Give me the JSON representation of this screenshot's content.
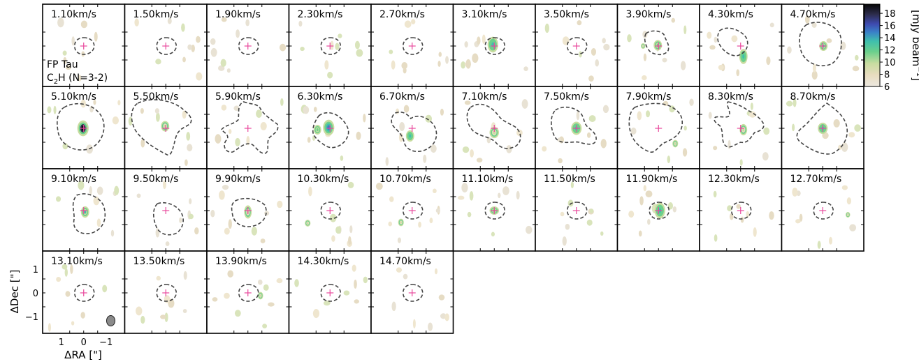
{
  "chart_data": {
    "type": "heatmap",
    "title": "",
    "source_label": "FP Tau",
    "line_label_main": "C",
    "line_label_sub": "2",
    "line_label_tail": "H (N=3-2)",
    "xlabel": "ΔRA [\"]",
    "ylabel": "ΔDec [\"]",
    "x_ticks": [
      "1",
      "0",
      "−1"
    ],
    "y_ticks": [
      "1",
      "0",
      "−1"
    ],
    "colorbar": {
      "label": "[mJy beam",
      "label_sup": "−1",
      "label_end": "]",
      "ticks": [
        "18",
        "16",
        "14",
        "12",
        "10",
        "8",
        "6"
      ],
      "range": [
        6,
        19.5
      ],
      "colors": [
        "#ece8e0",
        "#e8dcbf",
        "#c8dca0",
        "#6cd08c",
        "#3fbfad",
        "#3a80c8",
        "#3e4ab0",
        "#2c2c4a",
        "#080808"
      ]
    },
    "channels": [
      {
        "label": "1.10km/s",
        "mask": "circle",
        "blobs": []
      },
      {
        "label": "1.50km/s",
        "mask": "circle",
        "blobs": []
      },
      {
        "label": "1.90km/s",
        "mask": "circle",
        "blobs": []
      },
      {
        "label": "2.30km/s",
        "mask": "circle",
        "blobs": []
      },
      {
        "label": "2.70km/s",
        "mask": "circle",
        "blobs": []
      },
      {
        "label": "3.10km/s",
        "mask": "circle",
        "blobs": [
          {
            "x": 0.1,
            "y": 0.1,
            "rx": 0.28,
            "ry": 0.42,
            "peak": 13
          }
        ]
      },
      {
        "label": "3.50km/s",
        "mask": "circle",
        "blobs": []
      },
      {
        "label": "3.90km/s",
        "mask": "ellipse_ne",
        "blobs": [
          {
            "x": 0.05,
            "y": 0.05,
            "rx": 0.22,
            "ry": 0.28,
            "peak": 11
          },
          {
            "x": 1.1,
            "y": 0.0,
            "rx": 0.12,
            "ry": 0.15,
            "peak": 9
          }
        ]
      },
      {
        "label": "4.30km/s",
        "mask": "tilted",
        "blobs": [
          {
            "x": -0.2,
            "y": -0.75,
            "rx": 0.22,
            "ry": 0.4,
            "peak": 13
          }
        ]
      },
      {
        "label": "4.70km/s",
        "mask": "blob_big",
        "blobs": [
          {
            "x": -0.05,
            "y": 0.0,
            "rx": 0.22,
            "ry": 0.26,
            "peak": 12
          }
        ]
      },
      {
        "label": "5.10km/s",
        "mask": "big_round",
        "blobs": [
          {
            "x": 0.05,
            "y": 0.0,
            "rx": 0.3,
            "ry": 0.42,
            "peak": 19
          }
        ]
      },
      {
        "label": "5.50km/s",
        "mask": "irregular_a",
        "blobs": [
          {
            "x": 0.05,
            "y": 0.15,
            "rx": 0.22,
            "ry": 0.28,
            "peak": 10
          }
        ]
      },
      {
        "label": "5.90km/s",
        "mask": "star",
        "blobs": []
      },
      {
        "label": "6.30km/s",
        "mask": "irregular_b",
        "blobs": [
          {
            "x": 0.1,
            "y": 0.05,
            "rx": 0.3,
            "ry": 0.42,
            "peak": 14
          },
          {
            "x": 0.9,
            "y": -0.1,
            "rx": 0.2,
            "ry": 0.26,
            "peak": 11
          }
        ]
      },
      {
        "label": "6.70km/s",
        "mask": "peanut",
        "blobs": [
          {
            "x": 0.15,
            "y": -0.55,
            "rx": 0.22,
            "ry": 0.3,
            "peak": 13
          }
        ]
      },
      {
        "label": "7.10km/s",
        "mask": "peanut_wide",
        "blobs": [
          {
            "x": 0.0,
            "y": -0.3,
            "rx": 0.25,
            "ry": 0.3,
            "peak": 9
          }
        ]
      },
      {
        "label": "7.50km/s",
        "mask": "irregular_c",
        "blobs": [
          {
            "x": 0.0,
            "y": 0.0,
            "rx": 0.28,
            "ry": 0.35,
            "peak": 13
          }
        ]
      },
      {
        "label": "7.90km/s",
        "mask": "irregular_d",
        "blobs": [
          {
            "x": -1.2,
            "y": -1.1,
            "rx": 0.15,
            "ry": 0.2,
            "peak": 10
          }
        ]
      },
      {
        "label": "8.30km/s",
        "mask": "notch",
        "blobs": [
          {
            "x": -0.2,
            "y": -0.1,
            "rx": 0.2,
            "ry": 0.3,
            "peak": 10
          }
        ]
      },
      {
        "label": "8.70km/s",
        "mask": "diamond",
        "blobs": [
          {
            "x": 0.0,
            "y": 0.0,
            "rx": 0.26,
            "ry": 0.3,
            "peak": 13
          }
        ]
      },
      {
        "label": "9.10km/s",
        "mask": "round_big",
        "blobs": [
          {
            "x": -0.1,
            "y": -0.1,
            "rx": 0.22,
            "ry": 0.3,
            "peak": 12
          }
        ]
      },
      {
        "label": "9.50km/s",
        "mask": "round_med",
        "blobs": []
      },
      {
        "label": "9.90km/s",
        "mask": "oval_med",
        "blobs": [
          {
            "x": 0.0,
            "y": -0.1,
            "rx": 0.2,
            "ry": 0.35,
            "peak": 10
          }
        ]
      },
      {
        "label": "10.30km/s",
        "mask": "circle",
        "blobs": [
          {
            "x": 1.6,
            "y": -0.9,
            "rx": 0.15,
            "ry": 0.18,
            "peak": 10
          }
        ]
      },
      {
        "label": "10.70km/s",
        "mask": "circle",
        "blobs": [
          {
            "x": 0.8,
            "y": -0.85,
            "rx": 0.15,
            "ry": 0.2,
            "peak": 10
          }
        ]
      },
      {
        "label": "11.10km/s",
        "mask": "circle",
        "blobs": [
          {
            "x": 0.0,
            "y": 0.0,
            "rx": 0.25,
            "ry": 0.22,
            "peak": 11
          }
        ]
      },
      {
        "label": "11.50km/s",
        "mask": "circle",
        "blobs": []
      },
      {
        "label": "11.90km/s",
        "mask": "circle",
        "blobs": [
          {
            "x": -0.1,
            "y": 0.0,
            "rx": 0.28,
            "ry": 0.42,
            "peak": 13
          }
        ]
      },
      {
        "label": "12.30km/s",
        "mask": "circle",
        "blobs": []
      },
      {
        "label": "12.70km/s",
        "mask": "circle",
        "blobs": [
          {
            "x": -1.8,
            "y": -0.3,
            "rx": 0.12,
            "ry": 0.15,
            "peak": 10
          }
        ]
      },
      {
        "label": "13.10km/s",
        "mask": "circle",
        "blobs": []
      },
      {
        "label": "13.50km/s",
        "mask": "circle",
        "blobs": []
      },
      {
        "label": "13.90km/s",
        "mask": "circle",
        "blobs": [
          {
            "x": -0.9,
            "y": -0.2,
            "rx": 0.14,
            "ry": 0.2,
            "peak": 10
          }
        ]
      },
      {
        "label": "14.30km/s",
        "mask": "circle",
        "blobs": []
      },
      {
        "label": "14.70km/s",
        "mask": "circle",
        "blobs": []
      }
    ]
  }
}
